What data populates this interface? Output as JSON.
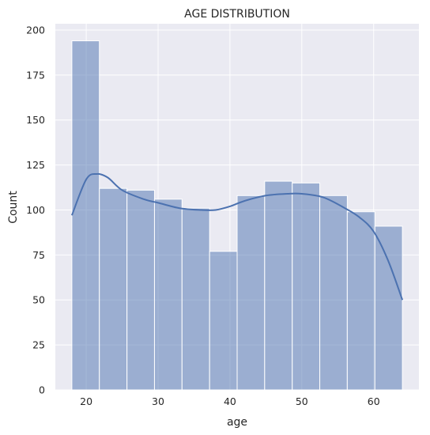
{
  "chart_data": {
    "type": "histogram",
    "title": "AGE DISTRIBUTION",
    "xlabel": "age",
    "ylabel": "Count",
    "xlim": [
      15.7,
      66.3
    ],
    "ylim": [
      0,
      203.5
    ],
    "xticks": [
      20,
      30,
      40,
      50,
      60
    ],
    "yticks": [
      0,
      25,
      50,
      75,
      100,
      125,
      150,
      175,
      200
    ],
    "grid": true,
    "bins": [
      {
        "x0": 18.0,
        "x1": 21.83,
        "count": 194
      },
      {
        "x0": 21.83,
        "x1": 25.67,
        "count": 112
      },
      {
        "x0": 25.67,
        "x1": 29.5,
        "count": 111
      },
      {
        "x0": 29.5,
        "x1": 33.33,
        "count": 106
      },
      {
        "x0": 33.33,
        "x1": 37.17,
        "count": 101
      },
      {
        "x0": 37.17,
        "x1": 41.0,
        "count": 77
      },
      {
        "x0": 41.0,
        "x1": 44.83,
        "count": 108
      },
      {
        "x0": 44.83,
        "x1": 48.67,
        "count": 116
      },
      {
        "x0": 48.67,
        "x1": 52.5,
        "count": 115
      },
      {
        "x0": 52.5,
        "x1": 56.33,
        "count": 108
      },
      {
        "x0": 56.33,
        "x1": 60.17,
        "count": 99
      },
      {
        "x0": 60.17,
        "x1": 64.0,
        "count": 91
      }
    ],
    "kde": {
      "x": [
        18,
        20,
        21.5,
        23,
        25,
        28,
        30,
        33,
        36,
        38,
        40,
        42,
        45,
        48,
        50,
        53,
        56,
        58,
        60,
        62,
        64
      ],
      "y": [
        97,
        117,
        120,
        118,
        111,
        106,
        104,
        101,
        100,
        100,
        102,
        105,
        108,
        109,
        109,
        107,
        101,
        96,
        88,
        72,
        50
      ]
    },
    "colors": {
      "background": "#eaeaf2",
      "grid": "#ffffff",
      "bar_fill": "#4c72b0",
      "bar_opacity": 0.5,
      "kde_line": "#4c72b0"
    }
  }
}
